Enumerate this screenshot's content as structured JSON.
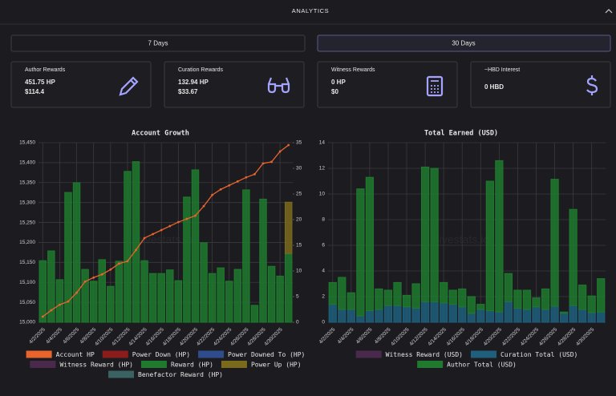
{
  "header": {
    "title": "ANALYTICS"
  },
  "timeframes": [
    "7 Days",
    "30 Days"
  ],
  "cards": [
    {
      "label": "Author Rewards",
      "lines": [
        "451.75 HP",
        "$114.4"
      ]
    },
    {
      "label": "Curation Rewards",
      "lines": [
        "132.94 HP",
        "$33.67"
      ]
    },
    {
      "label": "Witness Rewards",
      "lines": [
        "0 HP",
        "$0"
      ]
    },
    {
      "label": "~HBD Interest",
      "lines": [
        "0 HBD"
      ]
    }
  ],
  "watermark": "hivestats.io",
  "chart_data": [
    {
      "type": "bar",
      "title": "Account Growth",
      "stacked": true,
      "grid": true,
      "categories": [
        "4/2/2025",
        null,
        "4/4/2025",
        null,
        "4/6/2025",
        null,
        "4/8/2025",
        null,
        "4/10/2025",
        null,
        "4/12/2025",
        null,
        "4/14/2025",
        null,
        "4/16/2025",
        null,
        "4/18/2025",
        null,
        "4/20/2025",
        null,
        "4/22/2025",
        null,
        "4/24/2025",
        null,
        "4/26/2025",
        null,
        "4/28/2025",
        null,
        "4/30/2025",
        null
      ],
      "ylim": [
        15000,
        15450
      ],
      "yticks": [
        {
          "value": 15000,
          "label": "15,000"
        },
        {
          "value": 15050,
          "label": "15,050"
        },
        {
          "value": 15100,
          "label": "15,100"
        },
        {
          "value": 15150,
          "label": "15,150"
        },
        {
          "value": 15200,
          "label": "15,200"
        },
        {
          "value": 15250,
          "label": "15,250"
        },
        {
          "value": 15300,
          "label": "15,300"
        },
        {
          "value": 15350,
          "label": "15,350"
        },
        {
          "value": 15400,
          "label": "15,400"
        },
        {
          "value": 15450,
          "label": "15,450"
        }
      ],
      "y2lim": [
        0,
        35
      ],
      "y2ticks": [
        0,
        5,
        10,
        15,
        20,
        25,
        30,
        35
      ],
      "series": [
        {
          "name": "Account HP",
          "color": "#e8642c",
          "type": "line",
          "axis": "y",
          "values": [
            15014,
            15030,
            15044,
            15052,
            15074,
            15102,
            15112,
            15120,
            15132,
            15147,
            15153,
            15181,
            15211,
            15221,
            15231,
            15241,
            15251,
            15259,
            15267,
            15291,
            15319,
            15333,
            15343,
            15353,
            15363,
            15371,
            15398,
            15402,
            15428,
            15444
          ]
        },
        {
          "name": "Power Down (HP)",
          "color": "#8b1c1c"
        },
        {
          "name": "Power Downed To (HP)",
          "color": "#2f4c8c"
        },
        {
          "name": "Witness Reward (HP)",
          "color": "#4a2a4c"
        },
        {
          "name": "Reward (HP)",
          "color": "#1f7a2e",
          "axis": "y2",
          "values": [
            12,
            13.9,
            8.3,
            25.3,
            27.2,
            10.3,
            8,
            12.2,
            7,
            11.9,
            29.4,
            31.3,
            12,
            9.5,
            9.5,
            10.2,
            8.1,
            24.4,
            29.7,
            15.5,
            9.5,
            10.6,
            8,
            10.3,
            25.8,
            3.3,
            24,
            10.9,
            9,
            13.4
          ]
        },
        {
          "name": "Power Up (HP)",
          "color": "#7a6a1c",
          "axis": "y2",
          "values": [
            0,
            0,
            0,
            0,
            0,
            0,
            0,
            0,
            0,
            0,
            0,
            0,
            0,
            0,
            0,
            0,
            0,
            0,
            0,
            0,
            0,
            0,
            0,
            0,
            0,
            0,
            0,
            0,
            0,
            10
          ]
        },
        {
          "name": "Benefactor Reward (HP)",
          "color": "#3a6262"
        }
      ]
    },
    {
      "type": "bar",
      "title": "Total Earned (USD)",
      "stacked": true,
      "grid": true,
      "categories": [
        "4/2/2025",
        null,
        "4/4/2025",
        null,
        "4/6/2025",
        null,
        "4/8/2025",
        null,
        "4/10/2025",
        null,
        "4/12/2025",
        null,
        "4/14/2025",
        null,
        "4/16/2025",
        null,
        "4/18/2025",
        null,
        "4/20/2025",
        null,
        "4/22/2025",
        null,
        "4/24/2025",
        null,
        "4/26/2025",
        null,
        "4/28/2025",
        null,
        "4/30/2025",
        null
      ],
      "ylim": [
        0,
        14
      ],
      "yticks": [
        0,
        2,
        4,
        6,
        8,
        10,
        12,
        14
      ],
      "series": [
        {
          "name": "Witness Reward (USD)",
          "color": "#4a2a4c"
        },
        {
          "name": "Curation Total (USD)",
          "color": "#1f5f7c",
          "axis": "y",
          "values": [
            1.4,
            1,
            1,
            0.5,
            0.9,
            1,
            1.3,
            1.3,
            1.2,
            1.1,
            1.6,
            1.6,
            1.5,
            1.4,
            1.2,
            0.7,
            1,
            0.9,
            0.8,
            1.6,
            1.1,
            1,
            1.2,
            1,
            1.25,
            0.7,
            1.3,
            1,
            0.75,
            0.8
          ]
        },
        {
          "name": "Author Total (USD)",
          "color": "#1f7a2e",
          "axis": "y",
          "values": [
            1.7,
            2.5,
            1.3,
            9.9,
            10.4,
            1.6,
            1.2,
            1.8,
            0.9,
            1.9,
            10.5,
            10.4,
            1.6,
            1.1,
            1.4,
            1.3,
            0.4,
            10.1,
            11.8,
            2.2,
            1.4,
            1.5,
            0.7,
            1.6,
            9.9,
            0.1,
            7.5,
            1.9,
            1.3,
            2.6
          ]
        }
      ]
    }
  ]
}
